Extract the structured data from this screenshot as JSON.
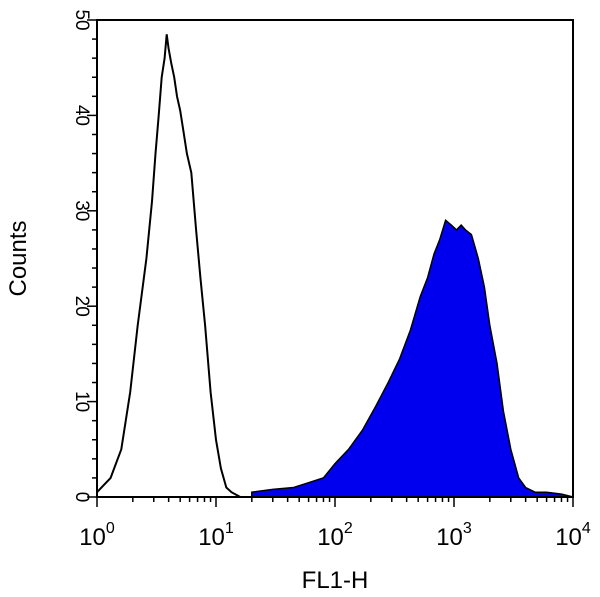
{
  "chart_data": {
    "type": "area",
    "title": "",
    "xlabel": "FL1-H",
    "ylabel": "Counts",
    "xscale": "log",
    "xlim": [
      1,
      10000
    ],
    "ylim": [
      0,
      50
    ],
    "x_ticks": [
      {
        "value": 1,
        "base": "10",
        "exp": "0"
      },
      {
        "value": 10,
        "base": "10",
        "exp": "1"
      },
      {
        "value": 100,
        "base": "10",
        "exp": "2"
      },
      {
        "value": 1000,
        "base": "10",
        "exp": "3"
      },
      {
        "value": 10000,
        "base": "10",
        "exp": "4"
      }
    ],
    "y_ticks": [
      "0",
      "10",
      "20",
      "30",
      "40",
      "50"
    ],
    "grid": false,
    "series": [
      {
        "style": "outline",
        "color": "#000000",
        "x": [
          1.0,
          1.3,
          1.6,
          1.9,
          2.2,
          2.6,
          2.9,
          3.1,
          3.3,
          3.5,
          3.7,
          3.85,
          4.0,
          4.2,
          4.45,
          4.7,
          5.0,
          5.3,
          5.7,
          6.2,
          6.8,
          7.4,
          8.1,
          9.0,
          10.0,
          11.0,
          12.2,
          13.5,
          16.0,
          20.0
        ],
        "y": [
          0.5,
          2,
          5,
          11,
          18,
          25,
          31,
          36,
          40,
          44,
          46,
          48.5,
          47,
          45.5,
          44,
          42,
          40.5,
          38.5,
          36,
          34,
          28,
          23,
          18,
          11,
          6,
          3,
          1,
          0.5,
          0,
          0
        ]
      },
      {
        "style": "filled",
        "color": "#0000ee",
        "x": [
          20,
          30,
          45,
          60,
          80,
          100,
          130,
          170,
          220,
          280,
          350,
          430,
          520,
          600,
          680,
          760,
          850,
          950,
          1050,
          1150,
          1250,
          1400,
          1600,
          1800,
          2000,
          2300,
          2600,
          3000,
          3500,
          4000,
          4800,
          6000,
          8000,
          10000
        ],
        "y": [
          0.5,
          0.8,
          1,
          1.5,
          2,
          3.5,
          5,
          7,
          9.5,
          12,
          14.5,
          17.5,
          21,
          23,
          25.5,
          27,
          29,
          28.5,
          28,
          28.5,
          28,
          27.5,
          25,
          22,
          18,
          14,
          9,
          5,
          2,
          1,
          0.5,
          0.5,
          0.3,
          0
        ]
      }
    ]
  }
}
